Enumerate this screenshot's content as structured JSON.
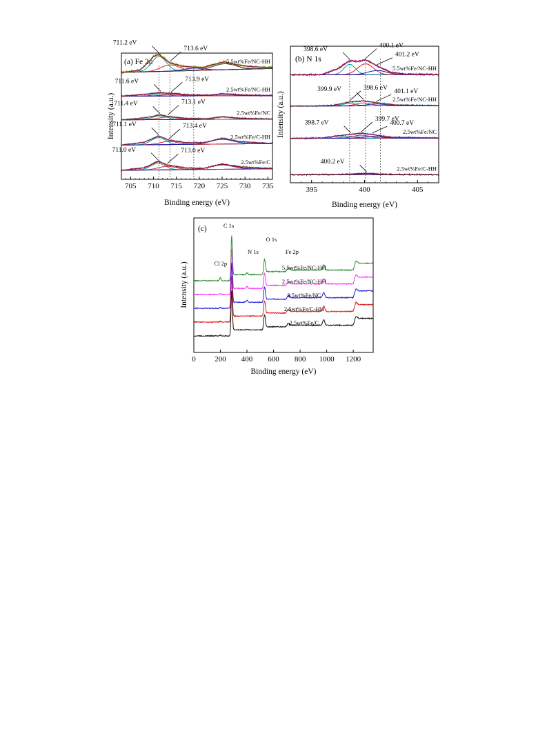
{
  "chart_data": [
    {
      "type": "line",
      "panel_label": "(a) Fe 2p",
      "xlabel": "Binding energy (eV)",
      "ylabel": "Intensity (a.u.)",
      "xlim": [
        703,
        736
      ],
      "xticks": [
        705,
        710,
        715,
        720,
        725,
        730,
        735
      ],
      "reference_lines": [
        711.2,
        713.6,
        718.8
      ],
      "series": [
        {
          "name": "5.5wt%Fe/NC-HH",
          "offset": 4,
          "envelope": [
            {
              "x": 703,
              "y": 0.2
            },
            {
              "x": 707,
              "y": 0.34
            },
            {
              "x": 709,
              "y": 0.88
            },
            {
              "x": 710,
              "y": 1.22
            },
            {
              "x": 711.2,
              "y": 1.36
            },
            {
              "x": 712.5,
              "y": 1.05
            },
            {
              "x": 713.6,
              "y": 0.82
            },
            {
              "x": 716,
              "y": 0.62
            },
            {
              "x": 718,
              "y": 0.55
            },
            {
              "x": 721,
              "y": 0.52
            },
            {
              "x": 723,
              "y": 0.7
            },
            {
              "x": 725.5,
              "y": 0.88
            },
            {
              "x": 728,
              "y": 0.7
            },
            {
              "x": 731,
              "y": 0.58
            },
            {
              "x": 735,
              "y": 0.52
            }
          ],
          "components": [
            {
              "center": 711.2,
              "height": 0.95,
              "width": 1.6
            },
            {
              "center": 713.6,
              "height": 0.4,
              "width": 2.0
            },
            {
              "center": 718.8,
              "height": 0.15,
              "width": 2.2
            },
            {
              "center": 725.5,
              "height": 0.38,
              "width": 2.5
            }
          ],
          "annotations": [
            {
              "text": "711.2 eV",
              "x": 711.2
            },
            {
              "text": "713.6 eV",
              "x": 713.6
            }
          ]
        },
        {
          "name": "2.5wt%Fe/NC-HH",
          "offset": 3,
          "envelope": [
            {
              "x": 703,
              "y": 0.3
            },
            {
              "x": 708,
              "y": 0.42
            },
            {
              "x": 711.6,
              "y": 0.52
            },
            {
              "x": 713.9,
              "y": 0.48
            },
            {
              "x": 718,
              "y": 0.38
            },
            {
              "x": 722,
              "y": 0.36
            },
            {
              "x": 725,
              "y": 0.46
            },
            {
              "x": 729,
              "y": 0.38
            },
            {
              "x": 735,
              "y": 0.34
            }
          ],
          "components": [
            {
              "center": 711.6,
              "height": 0.14,
              "width": 1.6
            },
            {
              "center": 713.9,
              "height": 0.1,
              "width": 2.0
            },
            {
              "center": 725.0,
              "height": 0.1,
              "width": 2.5
            }
          ],
          "annotations": [
            {
              "text": "711.6 eV",
              "x": 711.6
            },
            {
              "text": "713.9 eV",
              "x": 713.9
            }
          ]
        },
        {
          "name": "2.5wt%Fe/NC",
          "offset": 2,
          "envelope": [
            {
              "x": 703,
              "y": 0.4
            },
            {
              "x": 708,
              "y": 0.52
            },
            {
              "x": 711.4,
              "y": 0.72
            },
            {
              "x": 713.1,
              "y": 0.62
            },
            {
              "x": 717,
              "y": 0.5
            },
            {
              "x": 722,
              "y": 0.46
            },
            {
              "x": 725,
              "y": 0.6
            },
            {
              "x": 729,
              "y": 0.5
            },
            {
              "x": 735,
              "y": 0.46
            }
          ],
          "components": [
            {
              "center": 711.4,
              "height": 0.24,
              "width": 1.6
            },
            {
              "center": 713.1,
              "height": 0.16,
              "width": 2.0
            },
            {
              "center": 725.0,
              "height": 0.14,
              "width": 2.5
            }
          ],
          "annotations": [
            {
              "text": "711.4 eV",
              "x": 711.4
            },
            {
              "text": "713.1 eV",
              "x": 713.1
            }
          ]
        },
        {
          "name": "2.5wt%Fe/C-HH",
          "offset": 1,
          "envelope": [
            {
              "x": 703,
              "y": 0.4
            },
            {
              "x": 708,
              "y": 0.58
            },
            {
              "x": 711.1,
              "y": 0.98
            },
            {
              "x": 713.4,
              "y": 0.72
            },
            {
              "x": 717,
              "y": 0.56
            },
            {
              "x": 721,
              "y": 0.55
            },
            {
              "x": 725,
              "y": 0.84
            },
            {
              "x": 729,
              "y": 0.62
            },
            {
              "x": 735,
              "y": 0.52
            }
          ],
          "components": [
            {
              "center": 711.1,
              "height": 0.45,
              "width": 1.6
            },
            {
              "center": 713.4,
              "height": 0.2,
              "width": 2.0
            },
            {
              "center": 725.0,
              "height": 0.3,
              "width": 2.5
            }
          ],
          "annotations": [
            {
              "text": "711.1 eV",
              "x": 711.1
            },
            {
              "text": "713.4 eV",
              "x": 713.4
            }
          ]
        },
        {
          "name": "2.5wt%Fe/C",
          "offset": 0,
          "envelope": [
            {
              "x": 703,
              "y": 0.4
            },
            {
              "x": 708,
              "y": 0.56
            },
            {
              "x": 711.0,
              "y": 0.98
            },
            {
              "x": 713.0,
              "y": 0.74
            },
            {
              "x": 717,
              "y": 0.55
            },
            {
              "x": 721,
              "y": 0.52
            },
            {
              "x": 725,
              "y": 0.8
            },
            {
              "x": 729,
              "y": 0.62
            },
            {
              "x": 735,
              "y": 0.52
            }
          ],
          "components": [
            {
              "center": 711.0,
              "height": 0.42,
              "width": 1.6
            },
            {
              "center": 713.0,
              "height": 0.22,
              "width": 2.0
            },
            {
              "center": 725.0,
              "height": 0.28,
              "width": 2.5
            }
          ],
          "annotations": [
            {
              "text": "711.0 eV",
              "x": 711.0
            },
            {
              "text": "713.0 eV",
              "x": 713.0
            }
          ]
        }
      ]
    },
    {
      "type": "line",
      "panel_label": "(b) N 1s",
      "xlabel": "Binding energy (eV)",
      "ylabel": "Intensity (a.u.)",
      "xlim": [
        393,
        407
      ],
      "xticks": [
        395,
        400,
        405
      ],
      "reference_lines": [
        398.6,
        400.1,
        401.5
      ],
      "series": [
        {
          "name": "5.5wt%Fe/NC-HH",
          "offset": 3,
          "envelope": [
            {
              "x": 393,
              "y": 0.15
            },
            {
              "x": 396,
              "y": 0.16
            },
            {
              "x": 397.5,
              "y": 0.48
            },
            {
              "x": 398.6,
              "y": 0.9
            },
            {
              "x": 399.4,
              "y": 0.86
            },
            {
              "x": 400.1,
              "y": 0.95
            },
            {
              "x": 401.2,
              "y": 0.62
            },
            {
              "x": 402.5,
              "y": 0.28
            },
            {
              "x": 404,
              "y": 0.18
            },
            {
              "x": 407,
              "y": 0.16
            }
          ],
          "components": [
            {
              "center": 398.6,
              "height": 0.55,
              "width": 0.55
            },
            {
              "center": 400.1,
              "height": 0.58,
              "width": 0.75
            },
            {
              "center": 401.2,
              "height": 0.22,
              "width": 0.9
            }
          ],
          "annotations": [
            {
              "text": "398.6 eV",
              "x": 398.6
            },
            {
              "text": "400.1 eV",
              "x": 400.1
            },
            {
              "text": "401.2 eV",
              "x": 401.2
            }
          ]
        },
        {
          "name": "2.5wt%Fe/NC-HH",
          "offset": 2,
          "envelope": [
            {
              "x": 395,
              "y": 0.3
            },
            {
              "x": 397,
              "y": 0.34
            },
            {
              "x": 398.6,
              "y": 0.52
            },
            {
              "x": 399.9,
              "y": 0.58
            },
            {
              "x": 401.1,
              "y": 0.48
            },
            {
              "x": 403,
              "y": 0.36
            },
            {
              "x": 407,
              "y": 0.33
            }
          ],
          "components": [
            {
              "center": 398.6,
              "height": 0.14,
              "width": 0.6
            },
            {
              "center": 399.9,
              "height": 0.16,
              "width": 0.7
            },
            {
              "center": 401.1,
              "height": 0.1,
              "width": 0.9
            }
          ],
          "annotations": [
            {
              "text": "399.9 eV",
              "x": 399.9
            },
            {
              "text": "398.6 eV",
              "x": 398.6
            },
            {
              "text": "401.1 eV",
              "x": 401.1
            }
          ]
        },
        {
          "name": "2.5wt%Fe/NC",
          "offset": 1,
          "envelope": [
            {
              "x": 393,
              "y": 0.4
            },
            {
              "x": 396,
              "y": 0.42
            },
            {
              "x": 398.7,
              "y": 0.62
            },
            {
              "x": 399.7,
              "y": 0.68
            },
            {
              "x": 400.7,
              "y": 0.6
            },
            {
              "x": 402.5,
              "y": 0.46
            },
            {
              "x": 407,
              "y": 0.42
            }
          ],
          "components": [
            {
              "center": 398.7,
              "height": 0.12,
              "width": 0.7
            },
            {
              "center": 399.7,
              "height": 0.16,
              "width": 0.8
            },
            {
              "center": 400.7,
              "height": 0.1,
              "width": 0.9
            }
          ],
          "annotations": [
            {
              "text": "398.7 eV",
              "x": 398.7
            },
            {
              "text": "399.7 eV",
              "x": 399.7
            },
            {
              "text": "400.7 eV",
              "x": 400.7
            }
          ]
        },
        {
          "name": "2.5wt%Fe/C-HH",
          "offset": 0,
          "envelope": [
            {
              "x": 393,
              "y": 0.28
            },
            {
              "x": 398,
              "y": 0.3
            },
            {
              "x": 400.2,
              "y": 0.36
            },
            {
              "x": 402,
              "y": 0.3
            },
            {
              "x": 407,
              "y": 0.28
            }
          ],
          "components": [
            {
              "center": 400.2,
              "height": 0.05,
              "width": 1.0
            }
          ],
          "annotations": [
            {
              "text": "400.2 eV",
              "x": 400.2
            }
          ]
        }
      ]
    },
    {
      "type": "line",
      "panel_label": "(c)",
      "xlabel": "Binding energy (eV)",
      "ylabel": "Intensity (a.u.)",
      "xlim": [
        0,
        1350
      ],
      "xticks": [
        0,
        200,
        400,
        600,
        800,
        1000,
        1200
      ],
      "peak_labels": [
        {
          "text": "C 1s",
          "x": 285
        },
        {
          "text": "O 1s",
          "x": 532
        },
        {
          "text": "N 1s",
          "x": 400
        },
        {
          "text": "Fe 2p",
          "x": 711
        },
        {
          "text": "Cl 2p",
          "x": 200
        }
      ],
      "series": [
        {
          "name": "5.5wt%Fe/NC-HH",
          "color": "#2e8b2e",
          "offset": 4
        },
        {
          "name": "2.5wt%Fe/NC-HH",
          "color": "#ff33ff",
          "offset": 3
        },
        {
          "name": "2.5wt%Fe/NC",
          "color": "#1f1fd6",
          "offset": 2
        },
        {
          "name": "2.5wt%Fe/C-HH",
          "color": "#e01b1b",
          "offset": 1
        },
        {
          "name": "2.5wt%Fe/C",
          "color": "#111111",
          "offset": 0
        }
      ]
    }
  ]
}
